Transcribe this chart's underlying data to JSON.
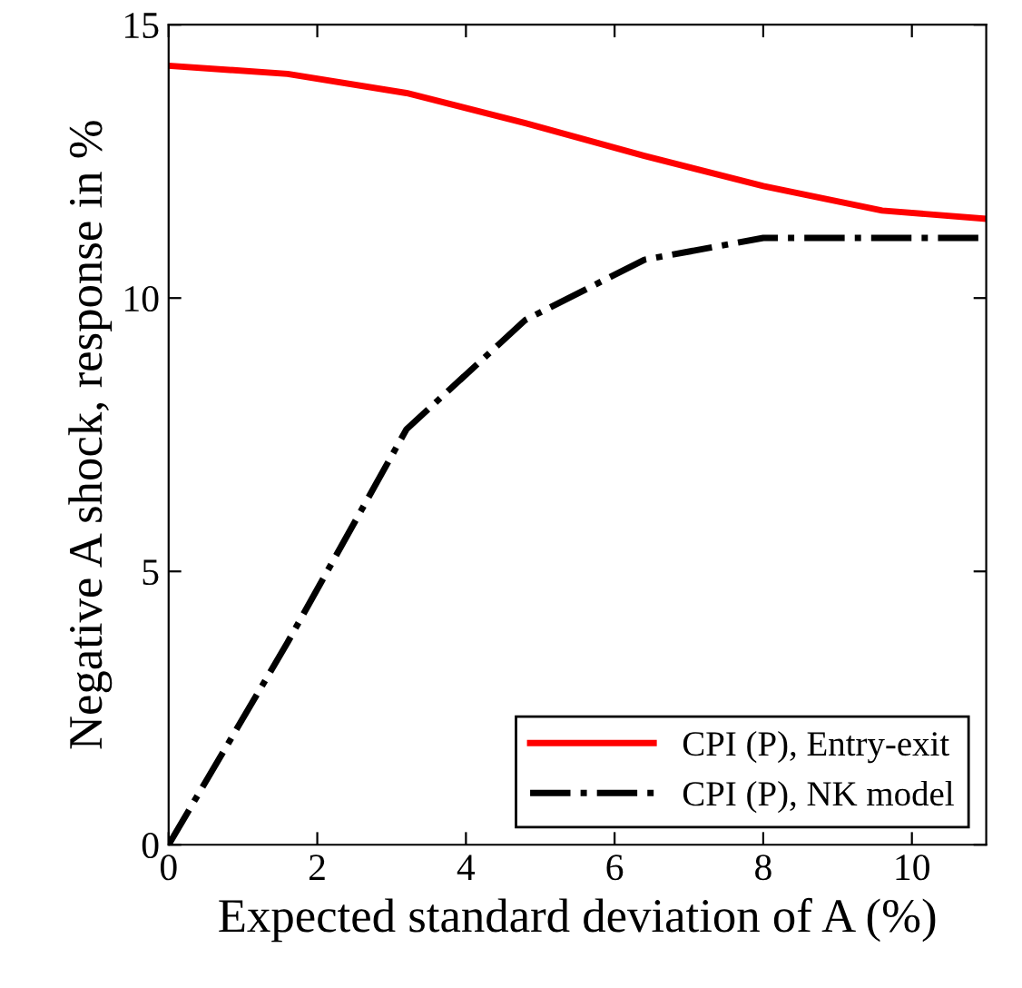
{
  "chart_data": {
    "type": "line",
    "xlabel": "Expected standard deviation of A (%)",
    "ylabel": "Negative A shock, response in %",
    "x": [
      0,
      1.6,
      3.2,
      4.8,
      6.4,
      8,
      9.6,
      11
    ],
    "series": [
      {
        "name": "CPI (P), Entry-exit",
        "color": "#ff0000",
        "line_style": "solid",
        "values": [
          14.25,
          14.1,
          13.75,
          13.2,
          12.6,
          12.05,
          11.6,
          11.45
        ]
      },
      {
        "name": "CPI (P), NK model",
        "color": "#000000",
        "line_style": "dashdot",
        "values": [
          0,
          3.7,
          7.6,
          9.6,
          10.7,
          11.1,
          11.1,
          11.1
        ]
      }
    ],
    "xlim": [
      0,
      11
    ],
    "ylim": [
      0,
      15
    ],
    "xticks": [
      0,
      2,
      4,
      6,
      8,
      10
    ],
    "yticks": [
      0,
      5,
      10,
      15
    ],
    "legend": "lower right",
    "grid": false,
    "marker": "none"
  }
}
